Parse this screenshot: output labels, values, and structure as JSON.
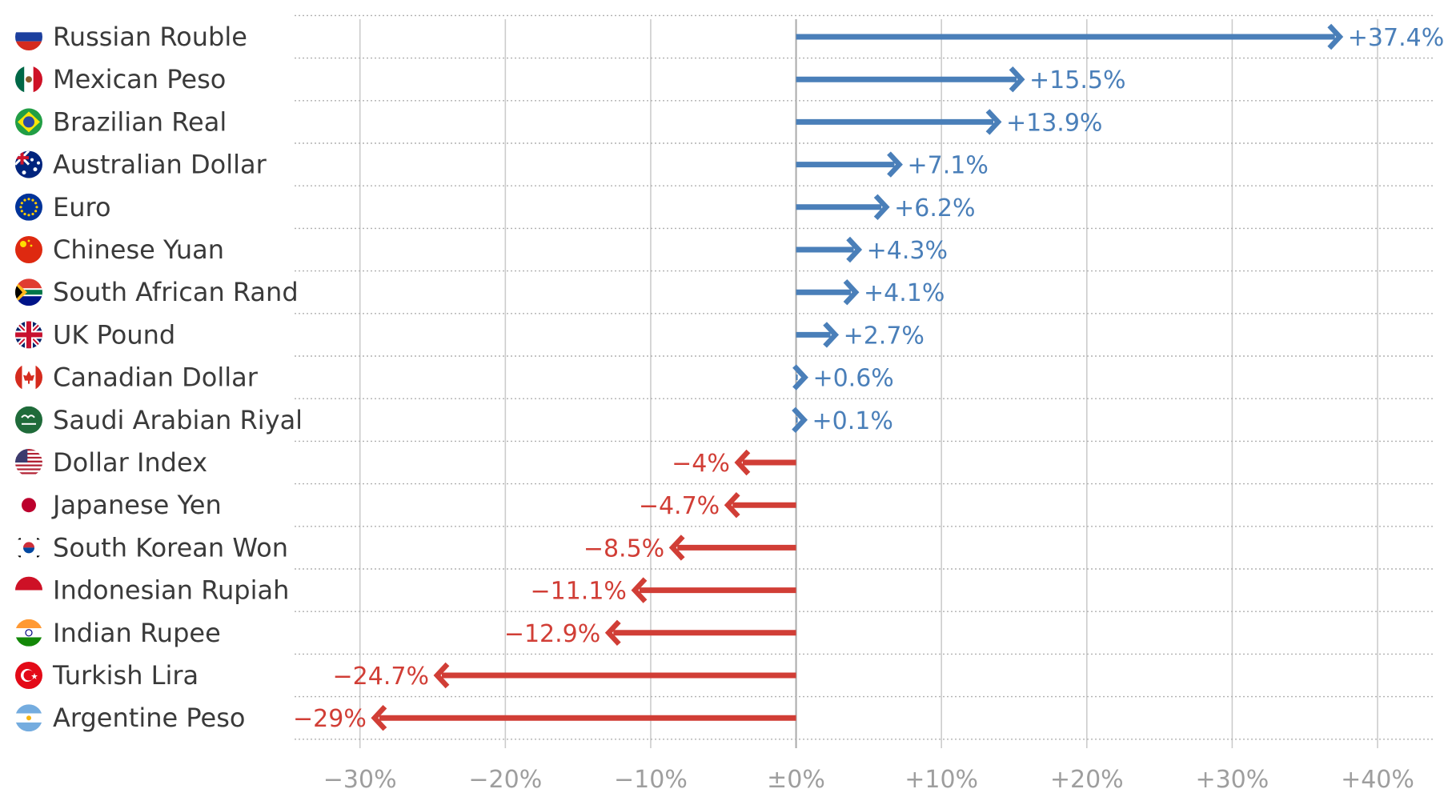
{
  "chart_data": {
    "type": "bar",
    "orientation": "horizontal",
    "categories": [
      "Russian Rouble",
      "Mexican Peso",
      "Brazilian Real",
      "Australian Dollar",
      "Euro",
      "Chinese Yuan",
      "South African Rand",
      "UK Pound",
      "Canadian Dollar",
      "Saudi Arabian Riyal",
      "Dollar Index",
      "Japanese Yen",
      "South Korean Won",
      "Indonesian Rupiah",
      "Indian Rupee",
      "Turkish Lira",
      "Argentine Peso"
    ],
    "values": [
      37.4,
      15.5,
      13.9,
      7.1,
      6.2,
      4.3,
      4.1,
      2.7,
      0.6,
      0.1,
      -4,
      -4.7,
      -8.5,
      -11.1,
      -12.9,
      -24.7,
      -29
    ],
    "value_labels": [
      "+37.4%",
      "+15.5%",
      "+13.9%",
      "+7.1%",
      "+6.2%",
      "+4.3%",
      "+4.1%",
      "+2.7%",
      "+0.6%",
      "+0.1%",
      "−4%",
      "−4.7%",
      "−8.5%",
      "−11.1%",
      "−12.9%",
      "−24.7%",
      "−29%"
    ],
    "flag_icons": [
      "russia-flag-icon",
      "mexico-flag-icon",
      "brazil-flag-icon",
      "australia-flag-icon",
      "eu-flag-icon",
      "china-flag-icon",
      "south-africa-flag-icon",
      "uk-flag-icon",
      "canada-flag-icon",
      "saudi-arabia-flag-icon",
      "usa-flag-icon",
      "japan-flag-icon",
      "south-korea-flag-icon",
      "indonesia-flag-icon",
      "india-flag-icon",
      "turkey-flag-icon",
      "argentina-flag-icon"
    ],
    "x_ticks": [
      -30,
      -20,
      -10,
      0,
      10,
      20,
      30,
      40
    ],
    "x_tick_labels": [
      "−30%",
      "−20%",
      "−10%",
      "±0%",
      "+10%",
      "+20%",
      "+30%",
      "+40%"
    ],
    "xlim": [
      -34.5,
      43.8
    ],
    "grid": true,
    "colors": {
      "positive": "#4a7fb9",
      "negative": "#d13e36",
      "grid": "#cccccc",
      "label": "#3a3a3a",
      "tick": "#9e9e9e"
    }
  }
}
